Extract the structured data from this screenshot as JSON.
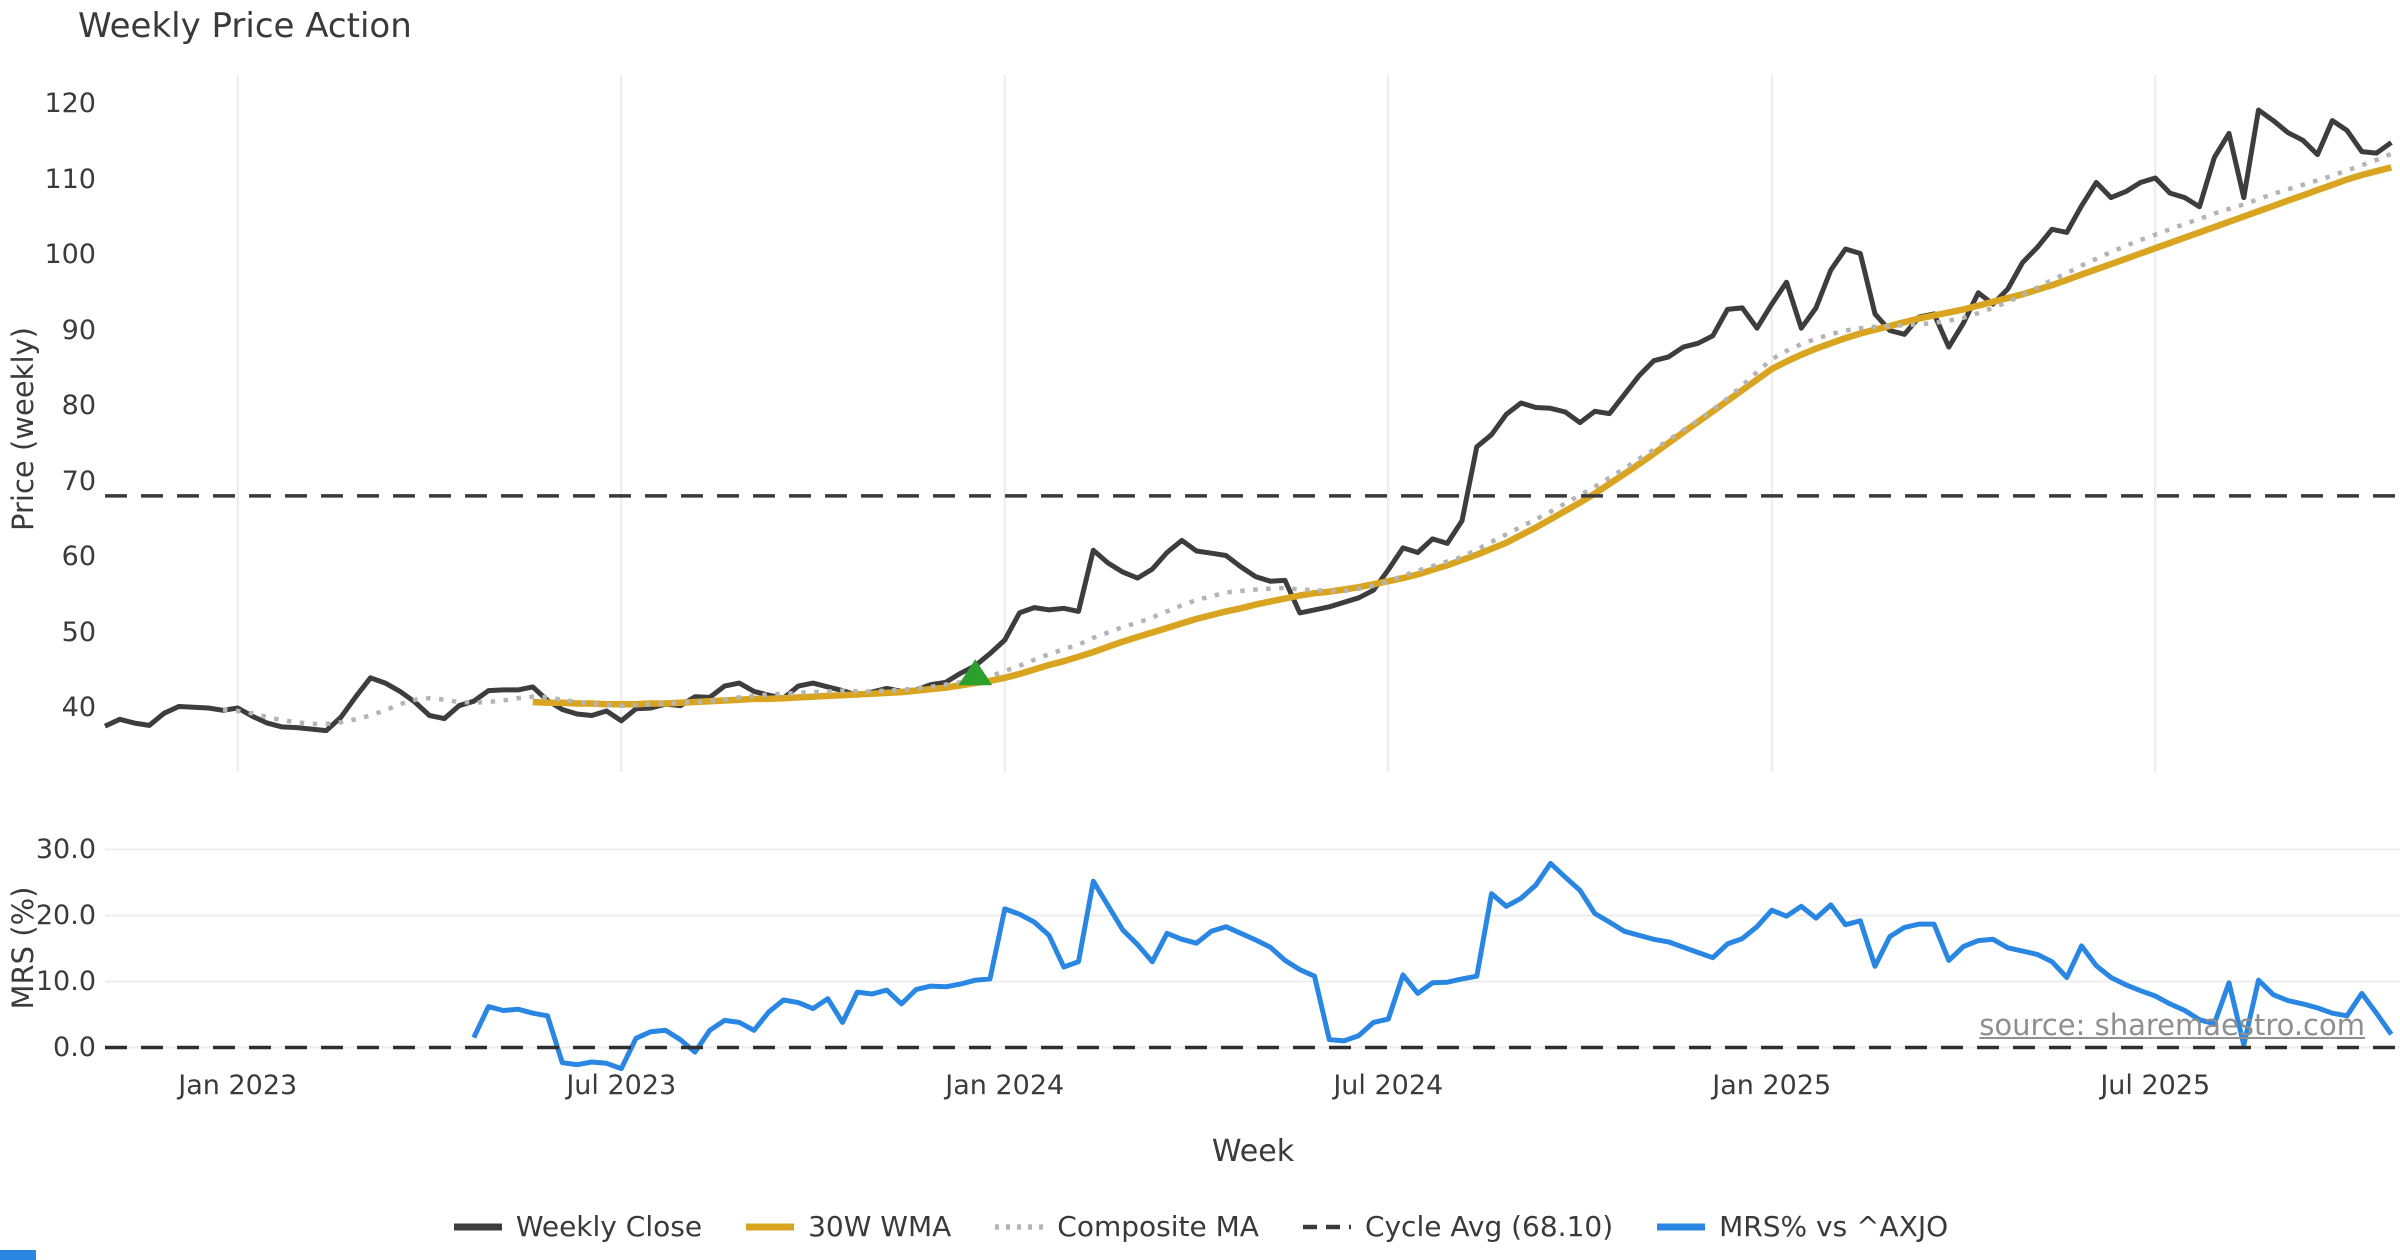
{
  "title": "Weekly Price Action",
  "source_note": "source: sharemaestro.com",
  "colors": {
    "close": "#3d3d3d",
    "wma": "#d9a521",
    "composite": "#b4b4b4",
    "cycle_avg": "#3a3a3a",
    "mrs": "#2986e2",
    "marker": "#2ca02c",
    "grid": "#ececec",
    "text": "#3b3b3b",
    "source_text": "#8f8f8f"
  },
  "x_axis": {
    "label": "Week",
    "ticks": [
      {
        "label": "Jan 2023",
        "week": 9
      },
      {
        "label": "Jul 2023",
        "week": 35
      },
      {
        "label": "Jan 2024",
        "week": 61
      },
      {
        "label": "Jul 2024",
        "week": 87
      },
      {
        "label": "Jan 2025",
        "week": 113
      },
      {
        "label": "Jul 2025",
        "week": 139
      }
    ]
  },
  "legend": [
    {
      "label": "Weekly Close",
      "style": "solid",
      "color": "#3d3d3d"
    },
    {
      "label": "30W WMA",
      "style": "solid",
      "color": "#d9a521"
    },
    {
      "label": "Composite MA",
      "style": "dotted",
      "color": "#b4b4b4"
    },
    {
      "label": "Cycle Avg (68.10)",
      "style": "dashed",
      "color": "#3a3a3a"
    },
    {
      "label": "MRS% vs ^AXJO",
      "style": "solid",
      "color": "#2986e2"
    }
  ],
  "chart_data": [
    {
      "type": "line",
      "panel": "top",
      "title": "Weekly Price Action",
      "ylabel": "Price (weekly)",
      "ylim": [
        31,
        126
      ],
      "grid": "vertical-only",
      "yticks": [
        {
          "label": "120",
          "value": 120
        },
        {
          "label": "110",
          "value": 110
        },
        {
          "label": "100",
          "value": 100
        },
        {
          "label": "90",
          "value": 90
        },
        {
          "label": "80",
          "value": 80
        },
        {
          "label": "70",
          "value": 70
        },
        {
          "label": "60",
          "value": 60
        },
        {
          "label": "50",
          "value": 50
        },
        {
          "label": "40",
          "value": 40
        }
      ],
      "marker": {
        "shape": "triangle-up",
        "color": "#2ca02c",
        "week": 59,
        "price": 44.6
      },
      "series": [
        {
          "name": "Weekly Close",
          "style": "solid",
          "color": "#3d3d3d",
          "width": 5,
          "start_week": 0,
          "values": [
            37.6,
            38.5,
            38.0,
            37.7,
            39.3,
            40.2,
            40.1,
            40.0,
            39.7,
            40.0,
            38.9,
            38.0,
            37.5,
            37.4,
            37.2,
            37.0,
            38.8,
            41.5,
            44.0,
            43.3,
            42.2,
            40.8,
            39.0,
            38.6,
            40.3,
            40.9,
            42.3,
            42.4,
            42.4,
            42.8,
            41.0,
            39.8,
            39.2,
            39.0,
            39.6,
            38.3,
            39.9,
            40.0,
            40.5,
            40.3,
            41.5,
            41.4,
            42.9,
            43.3,
            42.2,
            41.7,
            41.3,
            42.9,
            43.3,
            42.8,
            42.3,
            41.7,
            42.1,
            42.6,
            42.2,
            42.4,
            43.1,
            43.4,
            44.6,
            45.6,
            47.2,
            49.0,
            52.6,
            53.3,
            53.0,
            53.2,
            52.8,
            60.9,
            59.2,
            58.0,
            57.2,
            58.4,
            60.6,
            62.2,
            60.8,
            60.5,
            60.2,
            58.7,
            57.4,
            56.8,
            56.9,
            52.6,
            53.0,
            53.4,
            54.0,
            54.6,
            55.6,
            58.3,
            61.2,
            60.6,
            62.4,
            61.8,
            64.8,
            74.6,
            76.2,
            78.9,
            80.4,
            79.8,
            79.7,
            79.2,
            77.8,
            79.3,
            79.0,
            81.5,
            84.0,
            86.0,
            86.5,
            87.8,
            88.3,
            89.3,
            92.8,
            93.0,
            90.3,
            93.5,
            96.4,
            90.3,
            93.0,
            98.0,
            100.8,
            100.2,
            92.2,
            90.0,
            89.5,
            91.8,
            92.2,
            87.8,
            91.0,
            95.0,
            93.5,
            95.5,
            99.0,
            101.0,
            103.4,
            103.0,
            106.5,
            109.6,
            107.6,
            108.4,
            109.6,
            110.2,
            108.2,
            107.6,
            106.4,
            112.9,
            116.1,
            107.6,
            119.2,
            117.8,
            116.2,
            115.2,
            113.3,
            117.8,
            116.5,
            113.7,
            113.5,
            114.9
          ]
        },
        {
          "name": "30W WMA",
          "style": "solid",
          "color": "#d9a521",
          "width": 6.5,
          "start_week": 29,
          "values": [
            40.8,
            40.7,
            40.7,
            40.6,
            40.6,
            40.5,
            40.5,
            40.5,
            40.6,
            40.6,
            40.7,
            40.8,
            40.9,
            41.0,
            41.1,
            41.2,
            41.2,
            41.3,
            41.4,
            41.5,
            41.6,
            41.7,
            41.8,
            41.9,
            42.0,
            42.1,
            42.3,
            42.5,
            42.7,
            43.0,
            43.3,
            43.6,
            44.0,
            44.5,
            45.1,
            45.7,
            46.2,
            46.8,
            47.4,
            48.1,
            48.8,
            49.4,
            50.0,
            50.6,
            51.2,
            51.8,
            52.3,
            52.8,
            53.2,
            53.7,
            54.1,
            54.5,
            54.9,
            55.2,
            55.4,
            55.7,
            56.0,
            56.4,
            56.8,
            57.2,
            57.7,
            58.3,
            58.9,
            59.6,
            60.3,
            61.1,
            61.9,
            62.9,
            63.9,
            65.0,
            66.1,
            67.2,
            68.4,
            69.7,
            71.0,
            72.3,
            73.7,
            75.1,
            76.5,
            77.9,
            79.3,
            80.7,
            82.1,
            83.5,
            84.9,
            85.9,
            86.8,
            87.6,
            88.3,
            89.0,
            89.6,
            90.1,
            90.6,
            91.1,
            91.6,
            92.0,
            92.4,
            92.8,
            93.3,
            93.8,
            94.3,
            94.8,
            95.4,
            96.0,
            96.7,
            97.4,
            98.1,
            98.8,
            99.5,
            100.2,
            100.9,
            101.6,
            102.3,
            103.0,
            103.7,
            104.4,
            105.1,
            105.8,
            106.5,
            107.2,
            107.9,
            108.6,
            109.3,
            110.0,
            110.6,
            111.1,
            111.6
          ]
        },
        {
          "name": "Composite MA",
          "style": "dotted",
          "color": "#b4b4b4",
          "width": 4.5,
          "start_week": 8,
          "values": [
            39.8,
            39.6,
            39.3,
            38.8,
            38.4,
            38.1,
            37.9,
            37.9,
            38.1,
            38.5,
            39.0,
            39.7,
            40.5,
            41.1,
            41.3,
            41.1,
            40.8,
            40.7,
            40.8,
            41.0,
            41.3,
            41.5,
            41.4,
            41.1,
            40.8,
            40.6,
            40.4,
            40.3,
            40.4,
            40.5,
            40.6,
            40.7,
            40.8,
            40.9,
            41.1,
            41.4,
            41.6,
            41.8,
            41.9,
            42.0,
            42.1,
            42.2,
            42.3,
            42.2,
            42.2,
            42.3,
            42.4,
            42.6,
            42.8,
            43.1,
            43.4,
            43.8,
            44.2,
            44.9,
            45.6,
            46.4,
            47.1,
            47.8,
            48.4,
            49.3,
            50.0,
            50.7,
            51.3,
            52.0,
            52.8,
            53.6,
            54.3,
            54.8,
            55.3,
            55.5,
            55.7,
            55.8,
            55.9,
            55.7,
            55.6,
            55.5,
            55.5,
            55.8,
            56.2,
            56.8,
            57.5,
            58.2,
            58.8,
            59.4,
            60.0,
            61.0,
            62.0,
            63.0,
            64.0,
            65.0,
            66.0,
            67.1,
            68.2,
            69.3,
            70.5,
            71.7,
            73.0,
            74.2,
            75.5,
            76.8,
            78.1,
            79.5,
            81.0,
            82.7,
            84.5,
            86.2,
            87.3,
            88.2,
            88.9,
            89.5,
            90.0,
            90.3,
            90.5,
            90.6,
            90.7,
            90.8,
            91.0,
            91.3,
            91.7,
            92.3,
            93.0,
            93.8,
            94.7,
            95.7,
            96.7,
            97.6,
            98.6,
            99.5,
            100.4,
            101.2,
            102.0,
            102.7,
            103.4,
            104.1,
            104.8,
            105.5,
            106.1,
            106.7,
            107.4,
            108.1,
            108.7,
            109.3,
            109.9,
            110.5,
            111.2,
            111.9,
            112.6,
            113.4
          ]
        },
        {
          "name": "Cycle Avg",
          "style": "dashed",
          "color": "#3a3a3a",
          "width": 3.5,
          "hline": 68.1
        }
      ]
    },
    {
      "type": "line",
      "panel": "bottom",
      "ylabel": "MRS (%)",
      "ylim": [
        -5,
        32
      ],
      "grid": "horizontal-only",
      "yticks": [
        {
          "label": "30.0",
          "value": 30
        },
        {
          "label": "20.0",
          "value": 20
        },
        {
          "label": "10.0",
          "value": 10
        },
        {
          "label": "0.0",
          "value": 0
        }
      ],
      "series": [
        {
          "name": "MRS% vs ^AXJO",
          "style": "solid",
          "color": "#2986e2",
          "width": 5,
          "start_week": 25,
          "values": [
            1.5,
            6.2,
            5.6,
            5.8,
            5.2,
            4.8,
            -2.3,
            -2.6,
            -2.2,
            -2.4,
            -3.2,
            1.4,
            2.4,
            2.6,
            1.2,
            -0.7,
            2.6,
            4.1,
            3.8,
            2.6,
            5.4,
            7.2,
            6.8,
            5.9,
            7.4,
            3.8,
            8.4,
            8.1,
            8.7,
            6.6,
            8.8,
            9.3,
            9.2,
            9.6,
            10.2,
            10.4,
            21.0,
            20.2,
            19.0,
            17.0,
            12.2,
            13.0,
            25.2,
            21.5,
            17.8,
            15.6,
            13.0,
            17.3,
            16.4,
            15.8,
            17.6,
            18.3,
            17.3,
            16.3,
            15.2,
            13.2,
            11.8,
            10.8,
            1.2,
            1.0,
            1.8,
            3.8,
            4.3,
            11.0,
            8.2,
            9.8,
            9.9,
            10.4,
            10.8,
            23.3,
            21.4,
            22.6,
            24.6,
            27.9,
            25.8,
            23.8,
            20.3,
            19.0,
            17.6,
            17.0,
            16.4,
            16.0,
            15.2,
            14.4,
            13.6,
            15.7,
            16.5,
            18.3,
            20.8,
            19.9,
            21.4,
            19.6,
            21.6,
            18.6,
            19.2,
            12.3,
            16.8,
            18.2,
            18.7,
            18.7,
            13.2,
            15.3,
            16.2,
            16.4,
            15.1,
            14.6,
            14.1,
            13.0,
            10.6,
            15.4,
            12.4,
            10.6,
            9.5,
            8.6,
            7.8,
            6.6,
            5.6,
            4.2,
            3.6,
            9.8,
            0.4,
            10.2,
            8.0,
            7.1,
            6.6,
            6.0,
            5.2,
            4.8,
            8.2,
            5.2,
            2.0
          ]
        },
        {
          "name": "Zero Line",
          "style": "dashed",
          "color": "#2f2f2f",
          "width": 3.5,
          "hline": 0.0
        }
      ]
    }
  ]
}
